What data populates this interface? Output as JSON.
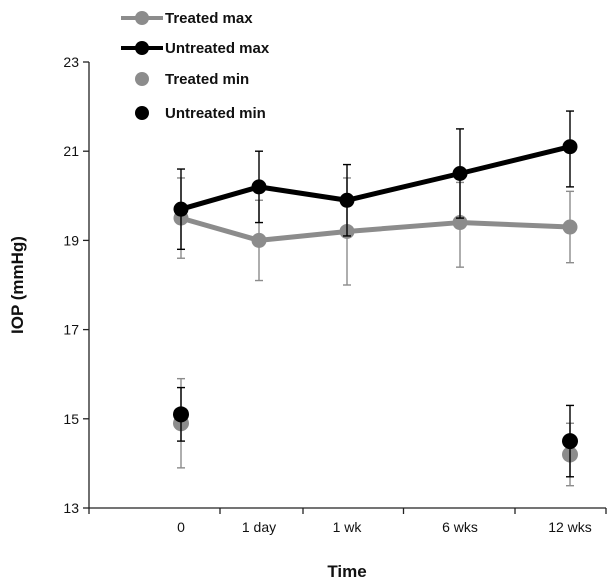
{
  "chart_data": {
    "type": "line",
    "title": "",
    "xlabel": "Time",
    "ylabel": "IOP (mmHg)",
    "categories": [
      "0",
      "1 day",
      "1 wk",
      "6 wks",
      "12 wks"
    ],
    "ylim": [
      13,
      23
    ],
    "yticks": [
      13,
      15,
      17,
      19,
      21,
      23
    ],
    "grid": false,
    "legend_position": "top-left",
    "series": [
      {
        "name": "Treated max",
        "style": "line",
        "color": "#8c8c8c",
        "values": [
          19.5,
          19.0,
          19.2,
          19.4,
          19.3
        ],
        "err_low": [
          18.6,
          18.1,
          18.0,
          18.4,
          18.5
        ],
        "err_high": [
          20.4,
          19.9,
          20.4,
          20.3,
          20.1
        ]
      },
      {
        "name": "Untreated max",
        "style": "line",
        "color": "#000000",
        "values": [
          19.7,
          20.2,
          19.9,
          20.5,
          21.1
        ],
        "err_low": [
          18.8,
          19.4,
          19.1,
          19.5,
          20.2
        ],
        "err_high": [
          20.6,
          21.0,
          20.7,
          21.5,
          21.9
        ]
      },
      {
        "name": "Treated min",
        "style": "points",
        "color": "#8c8c8c",
        "values": [
          14.9,
          null,
          null,
          null,
          14.2
        ],
        "err_low": [
          13.9,
          null,
          null,
          null,
          13.5
        ],
        "err_high": [
          15.9,
          null,
          null,
          null,
          14.9
        ]
      },
      {
        "name": "Untreated min",
        "style": "points",
        "color": "#000000",
        "values": [
          15.1,
          null,
          null,
          null,
          14.5
        ],
        "err_low": [
          14.5,
          null,
          null,
          null,
          13.7
        ],
        "err_high": [
          15.7,
          null,
          null,
          null,
          15.3
        ]
      }
    ]
  }
}
